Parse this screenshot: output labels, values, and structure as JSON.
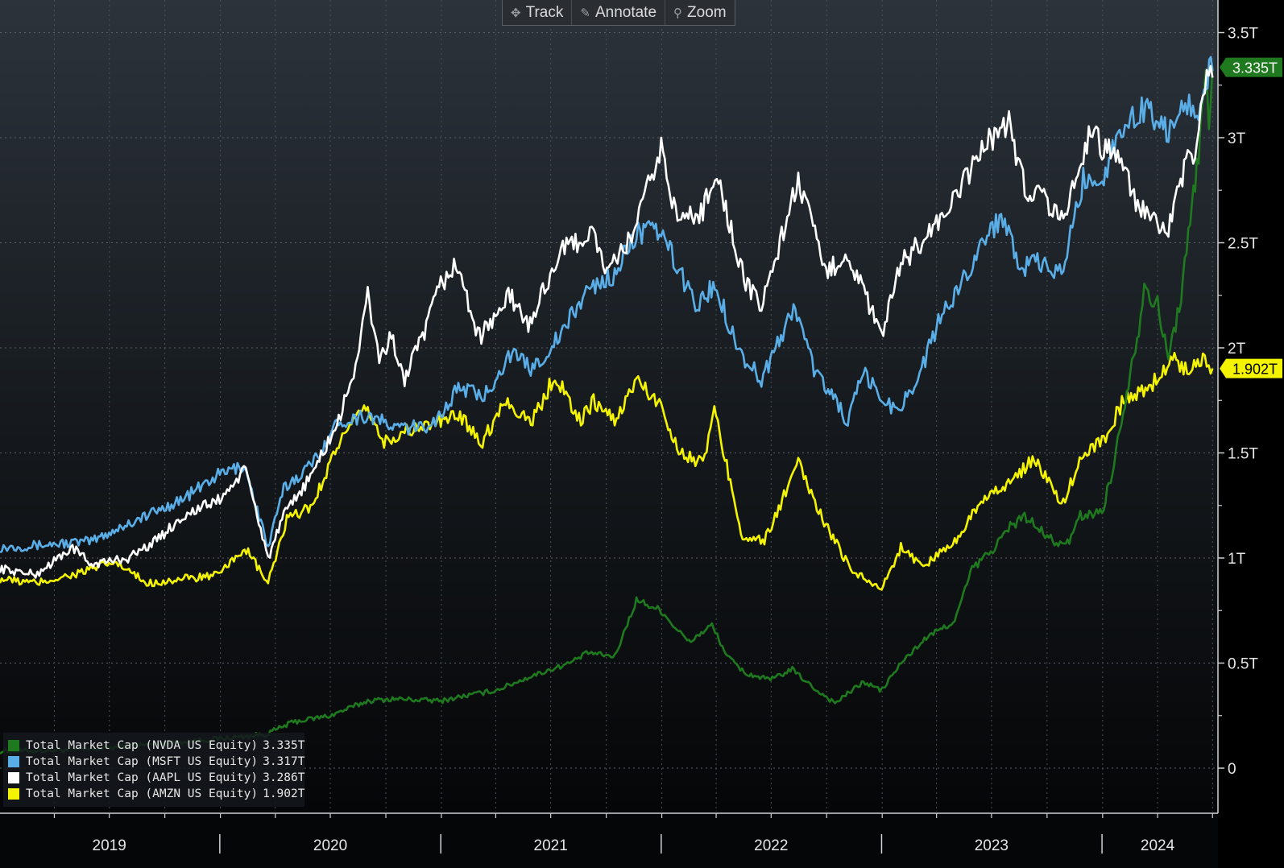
{
  "toolbar": {
    "track_label": "Track",
    "annotate_label": "Annotate",
    "zoom_label": "Zoom"
  },
  "chart_data": {
    "type": "line",
    "title": "",
    "xlabel": "",
    "ylabel": "",
    "ylim": [
      -0.25,
      3.5
    ],
    "y_ticks": [
      {
        "value": 3.5,
        "label": "3.5T"
      },
      {
        "value": 3.0,
        "label": "3T"
      },
      {
        "value": 2.5,
        "label": "2.5T"
      },
      {
        "value": 2.0,
        "label": "2T"
      },
      {
        "value": 1.5,
        "label": "1.5T"
      },
      {
        "value": 1.0,
        "label": "1T"
      },
      {
        "value": 0.5,
        "label": "0.5T"
      },
      {
        "value": 0.0,
        "label": "0"
      }
    ],
    "x_range": [
      "2019-01-01",
      "2024-07-10"
    ],
    "x_year_labels": [
      {
        "label": "2019",
        "center": "2019-07-01",
        "boundary": "2019-12-31"
      },
      {
        "label": "2020",
        "center": "2020-07-01",
        "boundary": "2020-12-31"
      },
      {
        "label": "2021",
        "center": "2021-07-01",
        "boundary": "2021-12-31"
      },
      {
        "label": "2022",
        "center": "2022-07-01",
        "boundary": "2022-12-31"
      },
      {
        "label": "2023",
        "center": "2023-07-01",
        "boundary": "2023-12-31"
      },
      {
        "label": "2024",
        "center": "2024-04-01",
        "boundary": null
      }
    ],
    "grid": true,
    "legend_position": "bottom-left",
    "series": [
      {
        "name": "Total Market Cap (NVDA US Equity)",
        "last_value": "3.335T",
        "color": "#1f7a1f",
        "badge": "3.335T",
        "badge_color": "#1f7a1f",
        "badge_text_color": "#ffffff",
        "points": [
          [
            "2019-01-01",
            0.08
          ],
          [
            "2019-06-01",
            0.09
          ],
          [
            "2019-12-31",
            0.14
          ],
          [
            "2020-03-15",
            0.16
          ],
          [
            "2020-05-01",
            0.22
          ],
          [
            "2020-07-01",
            0.25
          ],
          [
            "2020-09-01",
            0.32
          ],
          [
            "2020-10-15",
            0.33
          ],
          [
            "2020-12-31",
            0.32
          ],
          [
            "2021-02-01",
            0.34
          ],
          [
            "2021-04-01",
            0.37
          ],
          [
            "2021-06-01",
            0.44
          ],
          [
            "2021-08-01",
            0.5
          ],
          [
            "2021-09-01",
            0.55
          ],
          [
            "2021-10-15",
            0.53
          ],
          [
            "2021-11-20",
            0.8
          ],
          [
            "2021-12-31",
            0.75
          ],
          [
            "2022-01-20",
            0.68
          ],
          [
            "2022-02-15",
            0.6
          ],
          [
            "2022-03-25",
            0.68
          ],
          [
            "2022-04-20",
            0.53
          ],
          [
            "2022-05-20",
            0.45
          ],
          [
            "2022-06-30",
            0.42
          ],
          [
            "2022-08-05",
            0.47
          ],
          [
            "2022-09-10",
            0.38
          ],
          [
            "2022-10-15",
            0.31
          ],
          [
            "2022-12-01",
            0.41
          ],
          [
            "2022-12-31",
            0.37
          ],
          [
            "2023-02-01",
            0.5
          ],
          [
            "2023-03-15",
            0.62
          ],
          [
            "2023-05-01",
            0.7
          ],
          [
            "2023-05-30",
            0.95
          ],
          [
            "2023-06-30",
            1.03
          ],
          [
            "2023-08-01",
            1.15
          ],
          [
            "2023-08-25",
            1.2
          ],
          [
            "2023-10-01",
            1.1
          ],
          [
            "2023-11-01",
            1.05
          ],
          [
            "2023-11-25",
            1.2
          ],
          [
            "2023-12-31",
            1.22
          ],
          [
            "2024-01-20",
            1.45
          ],
          [
            "2024-02-10",
            1.8
          ],
          [
            "2024-03-01",
            2.1
          ],
          [
            "2024-03-10",
            2.3
          ],
          [
            "2024-04-01",
            2.2
          ],
          [
            "2024-04-19",
            1.95
          ],
          [
            "2024-05-10",
            2.25
          ],
          [
            "2024-05-25",
            2.6
          ],
          [
            "2024-06-05",
            2.85
          ],
          [
            "2024-06-20",
            3.3
          ],
          [
            "2024-06-25",
            3.1
          ],
          [
            "2024-07-01",
            3.335
          ]
        ]
      },
      {
        "name": "Total Market Cap (MSFT US Equity)",
        "last_value": "3.317T",
        "color": "#5aaee8",
        "badge": "",
        "badge_color": "#5aaee8",
        "badge_text_color": "#ffffff",
        "points": [
          [
            "2019-01-01",
            1.05
          ],
          [
            "2019-03-01",
            1.06
          ],
          [
            "2019-06-01",
            1.08
          ],
          [
            "2019-07-30",
            1.16
          ],
          [
            "2019-09-15",
            1.22
          ],
          [
            "2019-10-30",
            1.28
          ],
          [
            "2019-12-31",
            1.4
          ],
          [
            "2020-02-10",
            1.44
          ],
          [
            "2020-03-20",
            1.05
          ],
          [
            "2020-04-15",
            1.33
          ],
          [
            "2020-06-01",
            1.45
          ],
          [
            "2020-07-15",
            1.65
          ],
          [
            "2020-09-01",
            1.68
          ],
          [
            "2020-10-15",
            1.62
          ],
          [
            "2020-12-01",
            1.62
          ],
          [
            "2020-12-31",
            1.68
          ],
          [
            "2021-02-01",
            1.82
          ],
          [
            "2021-03-10",
            1.76
          ],
          [
            "2021-04-25",
            1.97
          ],
          [
            "2021-06-01",
            1.9
          ],
          [
            "2021-07-15",
            2.05
          ],
          [
            "2021-09-01",
            2.28
          ],
          [
            "2021-10-15",
            2.35
          ],
          [
            "2021-11-20",
            2.55
          ],
          [
            "2021-12-31",
            2.55
          ],
          [
            "2022-02-01",
            2.35
          ],
          [
            "2022-03-01",
            2.2
          ],
          [
            "2022-03-30",
            2.3
          ],
          [
            "2022-05-10",
            1.98
          ],
          [
            "2022-06-15",
            1.85
          ],
          [
            "2022-08-10",
            2.2
          ],
          [
            "2022-09-10",
            1.9
          ],
          [
            "2022-10-15",
            1.75
          ],
          [
            "2022-11-05",
            1.65
          ],
          [
            "2022-12-01",
            1.88
          ],
          [
            "2022-12-31",
            1.76
          ],
          [
            "2023-01-25",
            1.7
          ],
          [
            "2023-03-01",
            1.85
          ],
          [
            "2023-04-01",
            2.1
          ],
          [
            "2023-05-01",
            2.25
          ],
          [
            "2023-06-15",
            2.5
          ],
          [
            "2023-07-20",
            2.63
          ],
          [
            "2023-08-20",
            2.38
          ],
          [
            "2023-09-15",
            2.4
          ],
          [
            "2023-10-25",
            2.35
          ],
          [
            "2023-11-30",
            2.8
          ],
          [
            "2023-12-31",
            2.8
          ],
          [
            "2024-02-01",
            3.05
          ],
          [
            "2024-03-15",
            3.15
          ],
          [
            "2024-04-19",
            3.02
          ],
          [
            "2024-05-20",
            3.18
          ],
          [
            "2024-06-05",
            3.1
          ],
          [
            "2024-06-20",
            3.3
          ],
          [
            "2024-07-01",
            3.317
          ]
        ]
      },
      {
        "name": "Total Market Cap (AAPL US Equity)",
        "last_value": "3.286T",
        "color": "#ffffff",
        "badge": "",
        "badge_color": "#ffffff",
        "badge_text_color": "#000000",
        "points": [
          [
            "2019-01-01",
            0.95
          ],
          [
            "2019-03-01",
            0.92
          ],
          [
            "2019-05-01",
            1.05
          ],
          [
            "2019-06-01",
            0.97
          ],
          [
            "2019-08-01",
            1.0
          ],
          [
            "2019-09-15",
            1.08
          ],
          [
            "2019-11-01",
            1.2
          ],
          [
            "2019-12-31",
            1.28
          ],
          [
            "2020-02-12",
            1.42
          ],
          [
            "2020-03-20",
            1.0
          ],
          [
            "2020-04-15",
            1.2
          ],
          [
            "2020-06-01",
            1.4
          ],
          [
            "2020-07-15",
            1.65
          ],
          [
            "2020-08-15",
            1.95
          ],
          [
            "2020-09-01",
            2.25
          ],
          [
            "2020-09-20",
            1.95
          ],
          [
            "2020-10-10",
            2.05
          ],
          [
            "2020-11-01",
            1.85
          ],
          [
            "2020-12-01",
            2.05
          ],
          [
            "2020-12-31",
            2.3
          ],
          [
            "2021-01-25",
            2.4
          ],
          [
            "2021-03-05",
            2.05
          ],
          [
            "2021-04-25",
            2.25
          ],
          [
            "2021-05-25",
            2.1
          ],
          [
            "2021-07-15",
            2.45
          ],
          [
            "2021-09-07",
            2.55
          ],
          [
            "2021-10-05",
            2.35
          ],
          [
            "2021-11-15",
            2.55
          ],
          [
            "2021-12-31",
            2.95
          ],
          [
            "2022-01-27",
            2.6
          ],
          [
            "2022-03-10",
            2.65
          ],
          [
            "2022-03-30",
            2.85
          ],
          [
            "2022-05-20",
            2.3
          ],
          [
            "2022-06-15",
            2.2
          ],
          [
            "2022-08-15",
            2.8
          ],
          [
            "2022-09-30",
            2.35
          ],
          [
            "2022-11-01",
            2.45
          ],
          [
            "2022-11-20",
            2.35
          ],
          [
            "2022-12-31",
            2.05
          ],
          [
            "2023-02-01",
            2.4
          ],
          [
            "2023-03-20",
            2.55
          ],
          [
            "2023-05-01",
            2.7
          ],
          [
            "2023-06-15",
            2.95
          ],
          [
            "2023-07-30",
            3.08
          ],
          [
            "2023-08-25",
            2.75
          ],
          [
            "2023-09-20",
            2.75
          ],
          [
            "2023-10-25",
            2.6
          ],
          [
            "2023-12-15",
            3.05
          ],
          [
            "2023-12-31",
            2.95
          ],
          [
            "2024-01-20",
            2.95
          ],
          [
            "2024-02-25",
            2.7
          ],
          [
            "2024-03-20",
            2.6
          ],
          [
            "2024-04-19",
            2.55
          ],
          [
            "2024-05-15",
            2.85
          ],
          [
            "2024-06-05",
            2.95
          ],
          [
            "2024-06-15",
            3.25
          ],
          [
            "2024-07-01",
            3.286
          ]
        ]
      },
      {
        "name": "Total Market Cap (AMZN US Equity)",
        "last_value": "1.902T",
        "color": "#f4f400",
        "badge": "1.902T",
        "badge_color": "#f4f400",
        "badge_text_color": "#000000",
        "points": [
          [
            "2019-01-01",
            0.9
          ],
          [
            "2019-03-01",
            0.88
          ],
          [
            "2019-05-01",
            0.92
          ],
          [
            "2019-07-10",
            0.98
          ],
          [
            "2019-09-01",
            0.88
          ],
          [
            "2019-11-01",
            0.9
          ],
          [
            "2019-12-31",
            0.92
          ],
          [
            "2020-02-10",
            1.05
          ],
          [
            "2020-03-20",
            0.88
          ],
          [
            "2020-04-20",
            1.18
          ],
          [
            "2020-06-01",
            1.25
          ],
          [
            "2020-07-15",
            1.55
          ],
          [
            "2020-09-01",
            1.72
          ],
          [
            "2020-09-25",
            1.55
          ],
          [
            "2020-11-01",
            1.6
          ],
          [
            "2020-12-31",
            1.65
          ],
          [
            "2021-02-01",
            1.68
          ],
          [
            "2021-03-10",
            1.55
          ],
          [
            "2021-04-15",
            1.75
          ],
          [
            "2021-06-01",
            1.65
          ],
          [
            "2021-07-08",
            1.87
          ],
          [
            "2021-08-20",
            1.65
          ],
          [
            "2021-09-10",
            1.75
          ],
          [
            "2021-10-15",
            1.65
          ],
          [
            "2021-11-20",
            1.85
          ],
          [
            "2021-12-31",
            1.72
          ],
          [
            "2022-02-01",
            1.5
          ],
          [
            "2022-03-10",
            1.45
          ],
          [
            "2022-03-29",
            1.7
          ],
          [
            "2022-05-15",
            1.1
          ],
          [
            "2022-06-20",
            1.08
          ],
          [
            "2022-08-15",
            1.45
          ],
          [
            "2022-09-30",
            1.15
          ],
          [
            "2022-11-10",
            0.95
          ],
          [
            "2022-12-31",
            0.85
          ],
          [
            "2023-02-01",
            1.05
          ],
          [
            "2023-03-10",
            0.96
          ],
          [
            "2023-05-01",
            1.08
          ],
          [
            "2023-06-20",
            1.3
          ],
          [
            "2023-08-01",
            1.35
          ],
          [
            "2023-09-10",
            1.48
          ],
          [
            "2023-10-25",
            1.25
          ],
          [
            "2023-11-30",
            1.5
          ],
          [
            "2023-12-31",
            1.55
          ],
          [
            "2024-02-05",
            1.75
          ],
          [
            "2024-03-15",
            1.8
          ],
          [
            "2024-04-29",
            1.95
          ],
          [
            "2024-05-20",
            1.9
          ],
          [
            "2024-06-15",
            1.95
          ],
          [
            "2024-07-01",
            1.902
          ]
        ]
      }
    ]
  }
}
